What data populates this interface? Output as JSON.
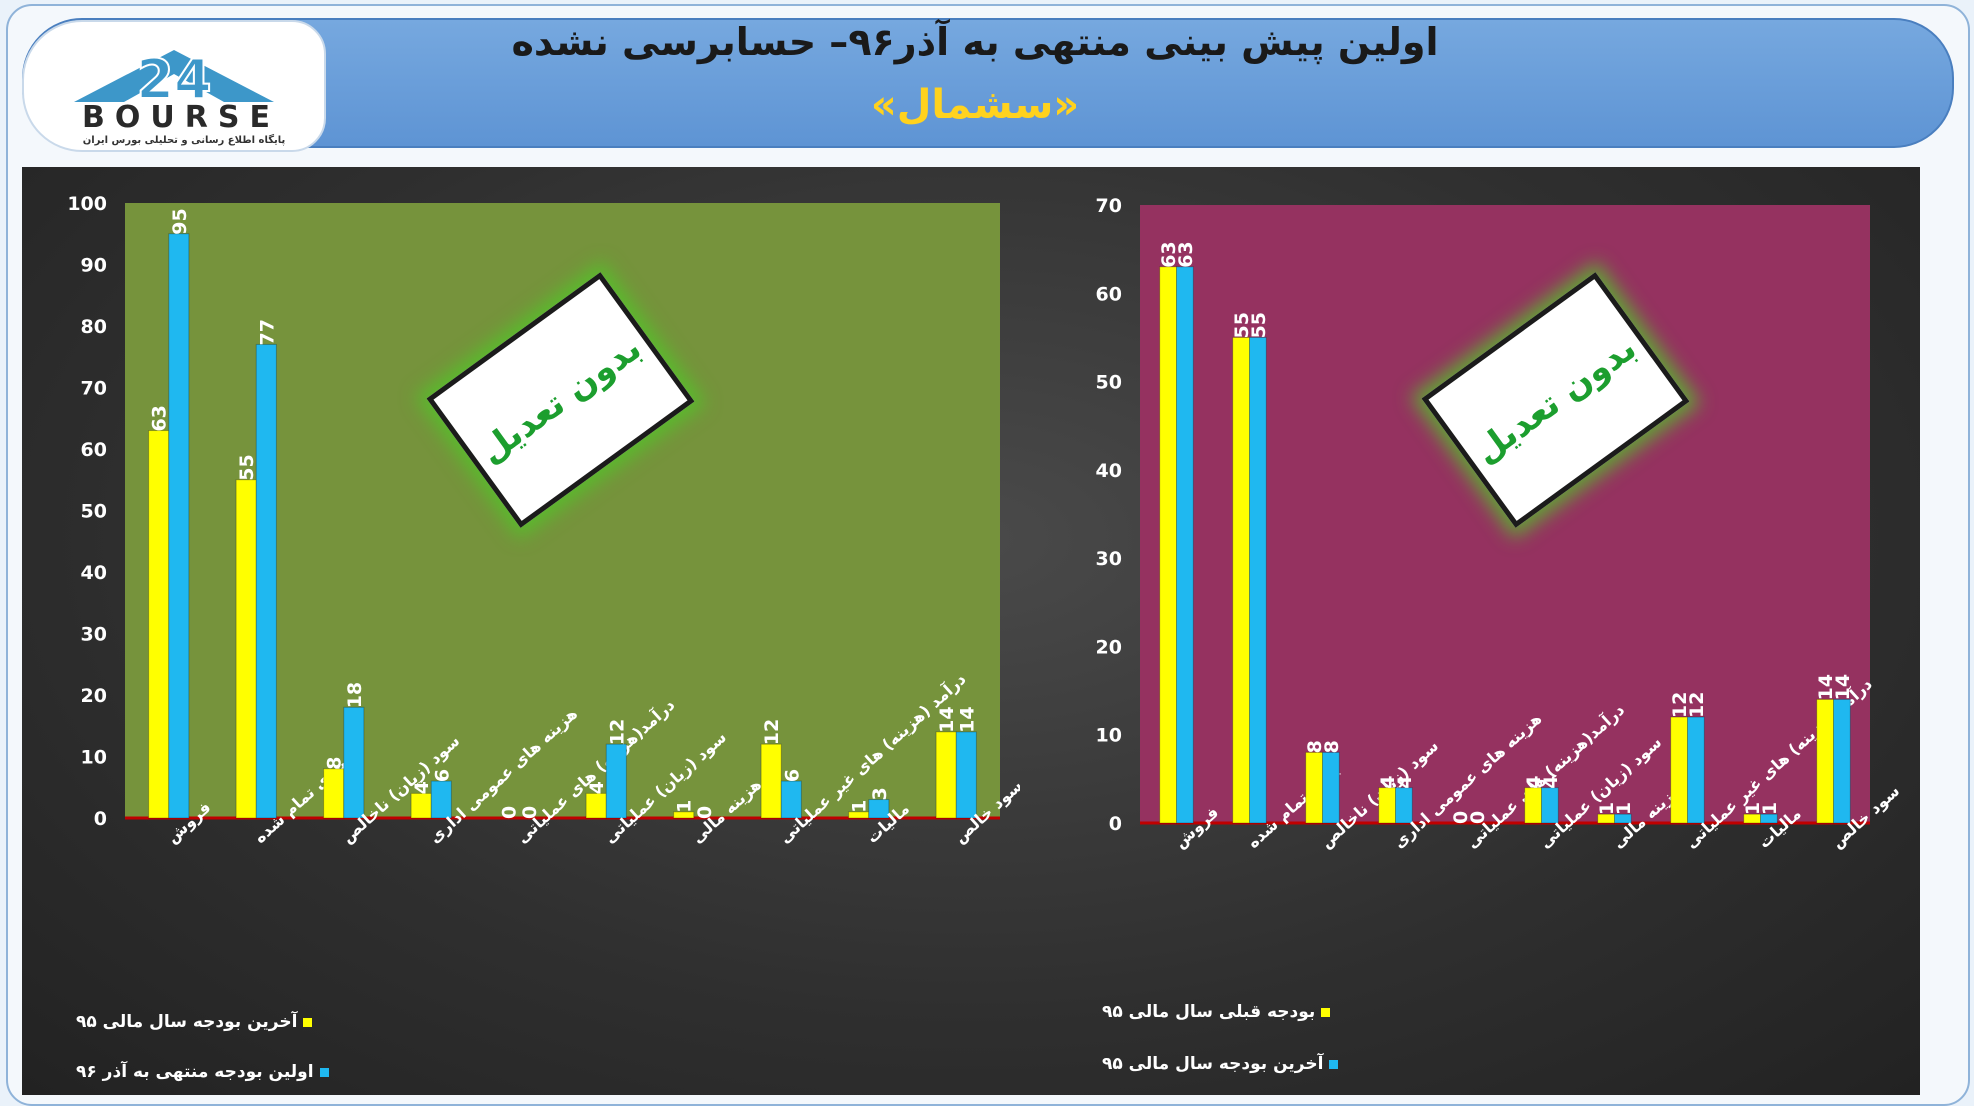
{
  "header": {
    "title": "اولین پیش بینی منتهی به آذر۹۶– حسابرسی نشده",
    "subtitle": "«سشمال»"
  },
  "logo": {
    "word": "BOURSE",
    "mark": "24",
    "tagline": "پایگاه اطلاع رسانی و تحلیلی بورس ایران"
  },
  "colors": {
    "series_yellow": "#ffff00",
    "series_blue": "#1fb8f0",
    "left_plot_bg": "#76933c",
    "right_plot_bg": "#953260",
    "stamp_text": "#1c9e2e"
  },
  "chart_data": [
    {
      "type": "bar",
      "categories": [
        "فروش",
        "بهای تمام شده",
        "سود (زیان) ناخالص",
        "هزینه های عمومی اداری",
        "درآمد(هزینه) های عملیاتی",
        "سود (زیان) عملیاتی",
        "هزینه مالی",
        "درآمد (هزینه) های غیر عملیاتی",
        "مالیات",
        "سود خالص"
      ],
      "series": [
        {
          "name": "آخرین بودجه سال مالی ۹۵",
          "color": "#ffff00",
          "values": [
            63,
            55,
            8,
            4,
            0,
            4,
            1,
            12,
            1,
            14
          ]
        },
        {
          "name": "اولین بودجه منتهی به آذر ۹۶",
          "color": "#1fb8f0",
          "values": [
            95,
            77,
            18,
            6,
            0,
            12,
            0,
            6,
            3,
            14
          ]
        }
      ],
      "ylim": [
        0,
        100
      ],
      "yticks": [
        0,
        10,
        20,
        30,
        40,
        50,
        60,
        70,
        80,
        90,
        100
      ],
      "stamp": "بدون تعدیل",
      "legend": "bottom-left"
    },
    {
      "type": "bar",
      "categories": [
        "فروش",
        "بهای تمام شده",
        "سود (زیان) ناخالص",
        "هزینه های عمومی اداری",
        "درآمد(هزینه) های عملیاتی",
        "سود (زیان) عملیاتی",
        "هزینه مالی",
        "درآمد (هزینه) های غیر عملیاتی",
        "مالیات",
        "سود خالص"
      ],
      "series": [
        {
          "name": "بودجه قبلی سال مالی ۹۵",
          "color": "#ffff00",
          "values": [
            63,
            55,
            8,
            4,
            0,
            4,
            1,
            12,
            1,
            14
          ]
        },
        {
          "name": "آخرین بودجه سال مالی ۹۵",
          "color": "#1fb8f0",
          "values": [
            63,
            55,
            8,
            4,
            0,
            4,
            1,
            12,
            1,
            14
          ]
        }
      ],
      "ylim": [
        0,
        70
      ],
      "yticks": [
        0,
        10,
        20,
        30,
        40,
        50,
        60,
        70
      ],
      "stamp": "بدون تعدیل",
      "legend": "bottom-left"
    }
  ]
}
